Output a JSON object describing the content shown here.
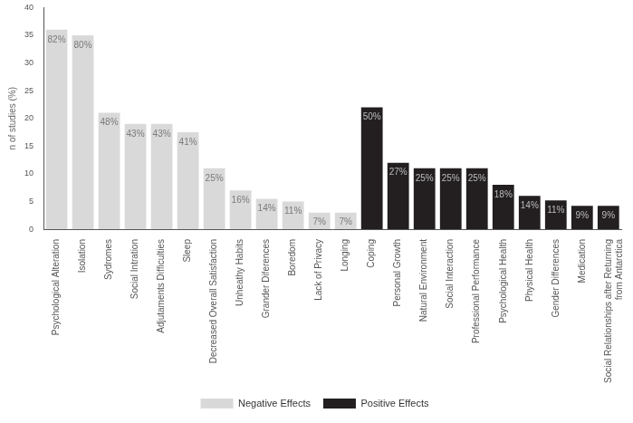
{
  "chart_data": {
    "type": "bar",
    "y_label": "n of studies (%)",
    "categories": [
      "Psychological Alteration",
      "Isolation",
      "Sydromes",
      "Social Intration",
      "Adjutaments Difficulties",
      "Sleep",
      "Decreased Overall Satisfaction",
      "Unheathy Habits",
      "Grander Diferences",
      "Boredom",
      "Lack of Privacy",
      "Longing",
      "Coping",
      "Personal Growth",
      "Natural Environment",
      "Social Interaction",
      "Professional Performance",
      "Psychological Health",
      "Physical Health",
      "Gender Differences",
      "Medication",
      "Social Relationships after Returning from Antarctica"
    ],
    "series": [
      {
        "name": "Negative Effects",
        "color": "#d9d9d9",
        "values": [
          36,
          35,
          21,
          19,
          19,
          17.5,
          11,
          7,
          5.5,
          5,
          3,
          3,
          null,
          null,
          null,
          null,
          null,
          null,
          null,
          null,
          null,
          null
        ],
        "bar_labels": [
          "82%",
          "80%",
          "48%",
          "43%",
          "43%",
          "41%",
          "25%",
          "16%",
          "14%",
          "11%",
          "7%",
          "7%",
          null,
          null,
          null,
          null,
          null,
          null,
          null,
          null,
          null,
          null
        ]
      },
      {
        "name": "Positive Effects",
        "color": "#231f20",
        "values": [
          null,
          null,
          null,
          null,
          null,
          null,
          null,
          null,
          null,
          null,
          null,
          null,
          22,
          12,
          11,
          11,
          11,
          8,
          6,
          5.2,
          4.2,
          4.2
        ],
        "bar_labels": [
          null,
          null,
          null,
          null,
          null,
          null,
          null,
          null,
          null,
          null,
          null,
          null,
          "50%",
          "27%",
          "25%",
          "25%",
          "25%",
          "18%",
          "14%",
          "11%",
          "9%",
          "9%"
        ]
      }
    ],
    "ylim": [
      0,
      40
    ],
    "yticks": [
      0,
      5,
      10,
      15,
      20,
      25,
      30,
      35,
      40
    ],
    "grid": false,
    "legend": "bottom",
    "data_labels": true
  }
}
